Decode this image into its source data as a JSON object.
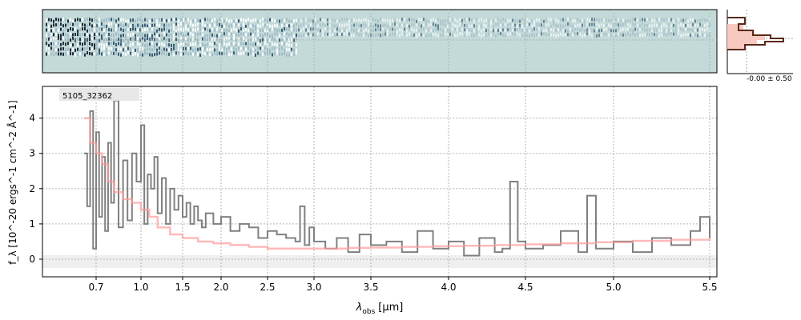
{
  "chart_data": {
    "type": "line",
    "object_label": "5105_32362",
    "xlabel_main": "λ",
    "xlabel_sub": "obs",
    "xlabel_unit": "[μm]",
    "ylabel_text": "f_λ [10^-20 ergs^-1 cm^-2 Å^-1]",
    "x_ticks": [
      "0.7",
      "1.0",
      "1.5",
      "2.0",
      "2.5",
      "3.0",
      "3.5",
      "4.0",
      "4.5",
      "5.0",
      "5.5"
    ],
    "y_ticks": [
      "0",
      "1",
      "2",
      "3",
      "4"
    ],
    "ylim": [
      -0.5,
      4.9
    ],
    "grid": true,
    "inset_label": "-0.00 ± 0.50",
    "series": [
      {
        "color": "#808080",
        "x": [
          0.62,
          0.64,
          0.66,
          0.68,
          0.7,
          0.72,
          0.74,
          0.76,
          0.78,
          0.8,
          0.82,
          0.85,
          0.88,
          0.91,
          0.94,
          0.97,
          1.0,
          1.04,
          1.08,
          1.12,
          1.16,
          1.2,
          1.25,
          1.3,
          1.35,
          1.4,
          1.45,
          1.5,
          1.55,
          1.6,
          1.65,
          1.7,
          1.75,
          1.8,
          1.9,
          2.0,
          2.1,
          2.2,
          2.3,
          2.4,
          2.5,
          2.6,
          2.7,
          2.8,
          2.85,
          2.9,
          2.95,
          3.0,
          3.1,
          3.2,
          3.3,
          3.4,
          3.5,
          3.6,
          3.7,
          3.8,
          3.9,
          4.0,
          4.1,
          4.2,
          4.3,
          4.35,
          4.4,
          4.45,
          4.5,
          4.6,
          4.7,
          4.8,
          4.85,
          4.9,
          5.0,
          5.1,
          5.2,
          5.3,
          5.4,
          5.45,
          5.5
        ],
        "y": [
          3.0,
          1.5,
          4.2,
          0.3,
          3.6,
          1.2,
          2.9,
          0.8,
          3.3,
          1.6,
          4.5,
          0.9,
          2.8,
          1.1,
          3.0,
          2.2,
          3.8,
          1.0,
          2.4,
          2.0,
          2.9,
          1.3,
          2.3,
          1.0,
          2.0,
          1.4,
          1.8,
          1.2,
          1.6,
          1.0,
          1.5,
          1.1,
          0.9,
          1.3,
          1.0,
          1.2,
          0.8,
          1.0,
          0.9,
          0.6,
          0.8,
          0.7,
          0.6,
          0.5,
          1.5,
          0.4,
          0.9,
          0.5,
          0.3,
          0.6,
          0.2,
          0.7,
          0.4,
          0.5,
          0.2,
          0.8,
          0.3,
          0.5,
          0.1,
          0.6,
          0.2,
          0.3,
          2.2,
          0.5,
          0.3,
          0.4,
          0.8,
          0.2,
          1.8,
          0.3,
          0.5,
          0.2,
          0.6,
          0.4,
          0.8,
          1.2,
          0.6
        ]
      },
      {
        "color": "#ff9a9a",
        "x": [
          0.62,
          0.66,
          0.7,
          0.74,
          0.78,
          0.82,
          0.88,
          0.94,
          1.0,
          1.1,
          1.2,
          1.35,
          1.5,
          1.7,
          1.9,
          2.1,
          2.3,
          2.5,
          2.7,
          2.9,
          3.1,
          3.3,
          3.5,
          3.7,
          3.9,
          4.1,
          4.3,
          4.5,
          4.7,
          4.9,
          5.1,
          5.3,
          5.5
        ],
        "y": [
          4.0,
          3.3,
          3.0,
          2.7,
          2.2,
          1.9,
          1.7,
          1.6,
          1.4,
          1.2,
          0.9,
          0.7,
          0.6,
          0.5,
          0.45,
          0.4,
          0.35,
          0.3,
          0.3,
          0.3,
          0.3,
          0.32,
          0.33,
          0.35,
          0.37,
          0.38,
          0.4,
          0.42,
          0.45,
          0.48,
          0.52,
          0.55,
          0.6
        ]
      }
    ]
  }
}
